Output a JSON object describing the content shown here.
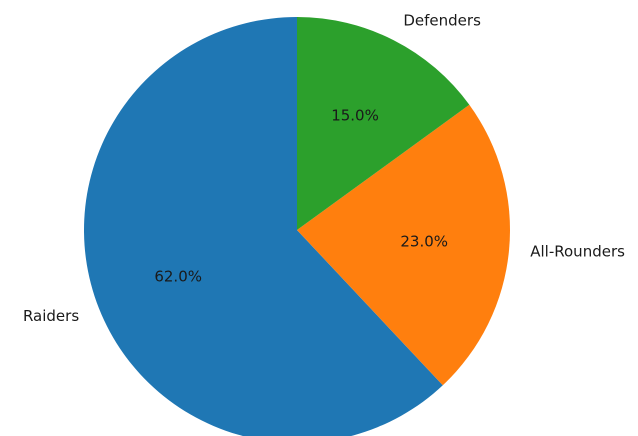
{
  "chart_data": {
    "type": "pie",
    "labels": [
      "Raiders",
      "All-Rounders",
      "Defenders"
    ],
    "values": [
      62.0,
      23.0,
      15.0
    ],
    "percent_labels": [
      "62.0%",
      "23.0%",
      "15.0%"
    ],
    "colors": [
      "#1f77b4",
      "#ff7f0e",
      "#2ca02c"
    ],
    "start_angle": 90,
    "direction": "counterclockwise"
  }
}
